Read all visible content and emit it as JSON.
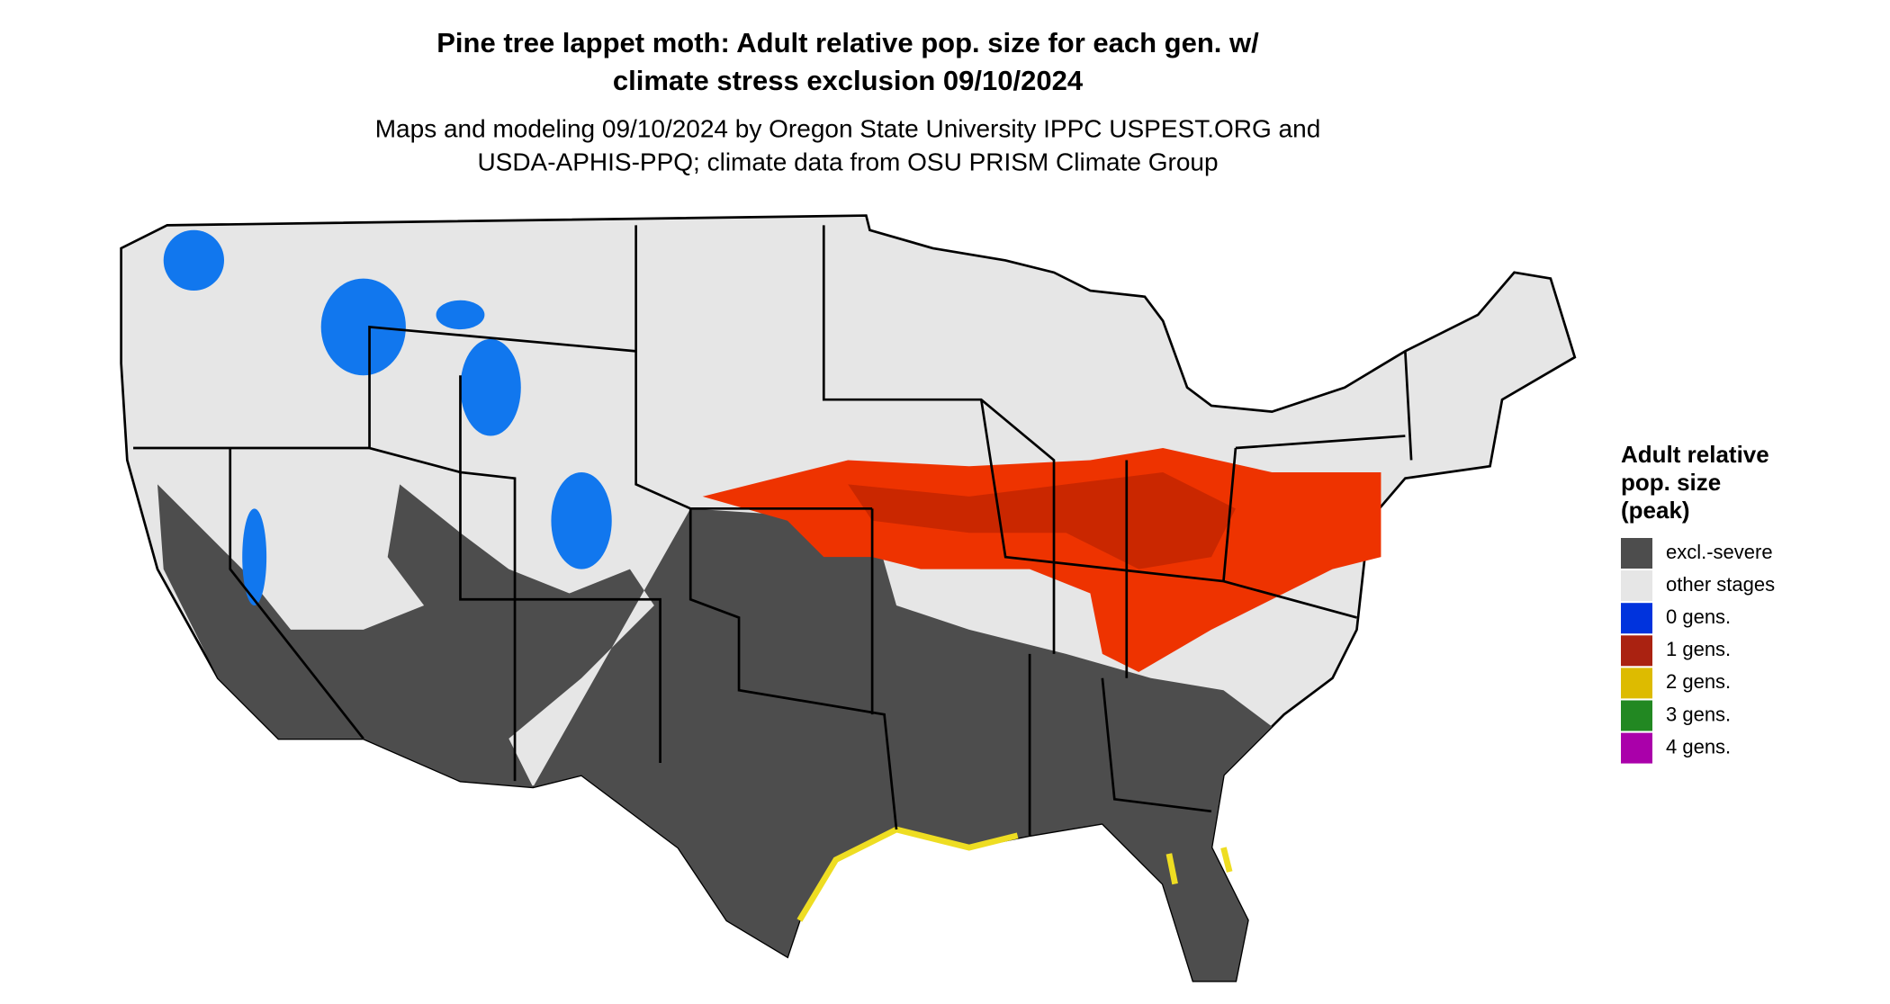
{
  "title": [
    "Pine tree lappet moth: Adult relative pop. size for each gen. w/",
    "climate stress exclusion 09/10/2024"
  ],
  "subtitle": [
    "Maps and modeling 09/10/2024 by Oregon State University IPPC USPEST.ORG and",
    "USDA-APHIS-PPQ; climate data from OSU PRISM Climate Group"
  ],
  "legend": {
    "title": [
      "Adult relative",
      "pop. size",
      "(peak)"
    ],
    "items": [
      {
        "label": "excl.-severe",
        "color": "#4d4d4d"
      },
      {
        "label": "other stages",
        "color": "#e6e6e6"
      },
      {
        "label": "0 gens.",
        "color": "#0033dd"
      },
      {
        "label": "1 gens.",
        "color": "#aa2211"
      },
      {
        "label": "2 gens.",
        "color": "#ddbb00"
      },
      {
        "label": "3 gens.",
        "color": "#228822"
      },
      {
        "label": "4 gens.",
        "color": "#aa00aa"
      }
    ]
  }
}
